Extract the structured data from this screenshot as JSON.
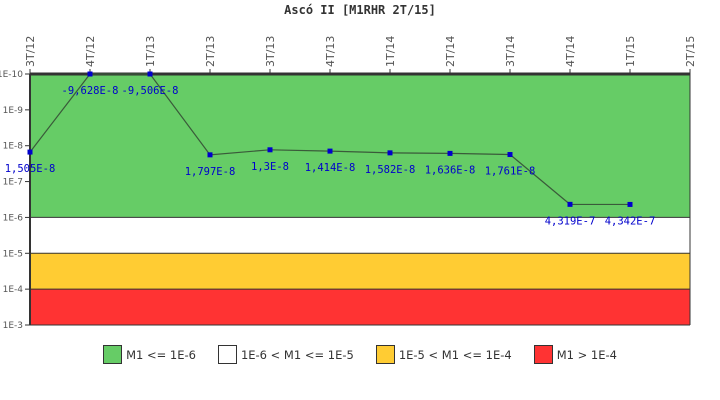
{
  "chart_data": {
    "type": "line",
    "title": "Ascó II [M1RHR 2T/15]",
    "xlabel": "",
    "ylabel": "",
    "y_scale": "log",
    "y_inverted": true,
    "ylim": [
      1e-10,
      0.001
    ],
    "y_ticks": [
      "1E-10",
      "1E-9",
      "1E-8",
      "1E-7",
      "1E-6",
      "1E-5",
      "1E-4",
      "1E-3"
    ],
    "categories": [
      "3T/12",
      "4T/12",
      "1T/13",
      "2T/13",
      "3T/13",
      "4T/13",
      "1T/14",
      "2T/14",
      "3T/14",
      "4T/14",
      "1T/15",
      "2T/15"
    ],
    "series": [
      {
        "name": "M1RHR",
        "values": [
          1.505e-08,
          -9.628e-08,
          -9.506e-08,
          1.797e-08,
          1.3e-08,
          1.414e-08,
          1.582e-08,
          1.636e-08,
          1.761e-08,
          4.319e-07,
          4.342e-07,
          null
        ],
        "labels": [
          "1,505E-8",
          "-9,628E-8",
          "-9,506E-8",
          "1,797E-8",
          "1,3E-8",
          "1,414E-8",
          "1,582E-8",
          "1,636E-8",
          "1,761E-8",
          "4,319E-7",
          "4,342E-7",
          ""
        ]
      }
    ],
    "bands": [
      {
        "label": "M1 <= 1E-6",
        "from": 1e-10,
        "to": 1e-06,
        "color": "#66cc66"
      },
      {
        "label": "1E-6 < M1 <= 1E-5",
        "from": 1e-06,
        "to": 1e-05,
        "color": "#ffffff"
      },
      {
        "label": "1E-5 < M1 <= 1E-4",
        "from": 1e-05,
        "to": 0.0001,
        "color": "#ffcc33"
      },
      {
        "label": "M1 > 1E-4",
        "from": 0.0001,
        "to": 0.001,
        "color": "#ff3333"
      }
    ],
    "grid": false,
    "legend_position": "bottom"
  },
  "legend": [
    {
      "label": "M1 <= 1E-6",
      "color": "#66cc66"
    },
    {
      "label": "1E-6 < M1 <= 1E-5",
      "color": "#ffffff"
    },
    {
      "label": "1E-5 < M1 <= 1E-4",
      "color": "#ffcc33"
    },
    {
      "label": "M1 > 1E-4",
      "color": "#ff3333"
    }
  ]
}
